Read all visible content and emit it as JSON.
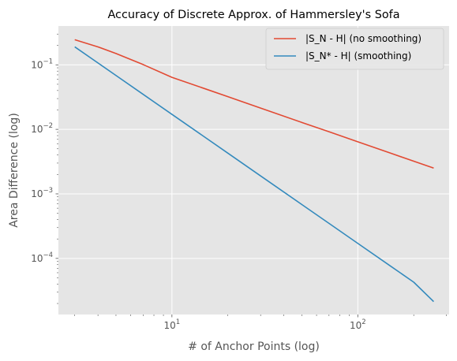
{
  "chart_data": {
    "type": "line",
    "title": "Accuracy of Discrete Approx. of Hammersley's Sofa",
    "xlabel": "# of Anchor Points (log)",
    "ylabel": "Area Difference (log)",
    "xscale": "log",
    "yscale": "log",
    "xlim": [
      2.45,
      310
    ],
    "ylim": [
      1.35e-05,
      0.4
    ],
    "grid": true,
    "legend_position": "top-right",
    "x_ticks": [
      {
        "value": 10,
        "base": "10",
        "exp": "1"
      },
      {
        "value": 100,
        "base": "10",
        "exp": "2"
      }
    ],
    "y_ticks": [
      {
        "value": 0.0001,
        "base": "10",
        "exp": "−4"
      },
      {
        "value": 0.001,
        "base": "10",
        "exp": "−3"
      },
      {
        "value": 0.01,
        "base": "10",
        "exp": "−2"
      },
      {
        "value": 0.1,
        "base": "10",
        "exp": "−1"
      }
    ],
    "series": [
      {
        "name": "|S_N - H| (no smoothing)",
        "color": "#E24A33",
        "x": [
          3,
          4,
          5,
          7,
          10,
          15,
          20,
          30,
          50,
          70,
          100,
          150,
          200,
          256
        ],
        "y": [
          0.245,
          0.19,
          0.15,
          0.101,
          0.064,
          0.0428,
          0.0321,
          0.0214,
          0.0128,
          0.00918,
          0.00643,
          0.00428,
          0.00321,
          0.00251
        ]
      },
      {
        "name": "|S_N* - H| (smoothing)",
        "color": "#348ABD",
        "x": [
          3,
          4,
          5,
          7,
          10,
          15,
          20,
          30,
          50,
          70,
          100,
          150,
          200,
          256
        ],
        "y": [
          0.19,
          0.107,
          0.0684,
          0.0349,
          0.0171,
          0.0076,
          0.00428,
          0.0019,
          0.000684,
          0.000349,
          0.000171,
          7.6e-05,
          4.28e-05,
          2.14e-05
        ]
      }
    ]
  }
}
